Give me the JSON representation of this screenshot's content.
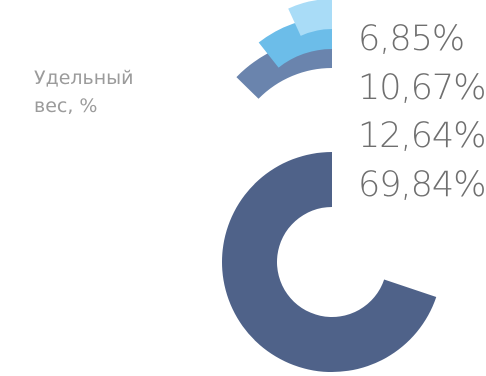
{
  "chart_data": {
    "type": "pie",
    "ylabel": "Удельный\nвес, %",
    "series": [
      {
        "label": "69,84%",
        "value": 69.84,
        "color": "#4f6289"
      },
      {
        "label": "12,64%",
        "value": 12.64,
        "color": "#6a84ad"
      },
      {
        "label": "10,67%",
        "value": 10.67,
        "color": "#6cbde9"
      },
      {
        "label": "6,85%",
        "value": 6.85,
        "color": "#a9dcf7"
      }
    ]
  }
}
